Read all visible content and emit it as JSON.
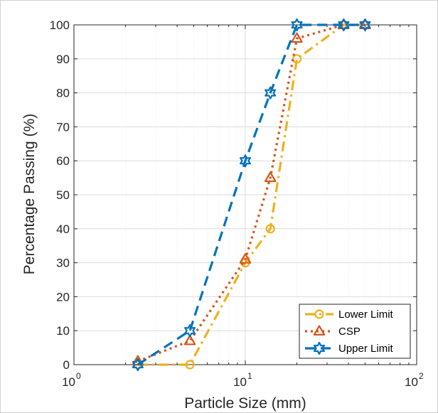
{
  "chart_data": {
    "type": "line",
    "title": "",
    "xlabel": "Particle Size (mm)",
    "ylabel": "Percentage Passing (%)",
    "xscale": "log",
    "xlim": [
      1,
      100
    ],
    "ylim": [
      0,
      100
    ],
    "x_ticks": [
      {
        "base": "10",
        "exp": "0",
        "value": 1
      },
      {
        "base": "10",
        "exp": "1",
        "value": 10
      },
      {
        "base": "10",
        "exp": "2",
        "value": 100
      }
    ],
    "y_ticks": [
      "0",
      "10",
      "20",
      "30",
      "40",
      "50",
      "60",
      "70",
      "80",
      "90",
      "100"
    ],
    "grid": true,
    "legend_position": "bottom-right",
    "series": [
      {
        "name": "Lower Limit",
        "color": "#EDB120",
        "line_style": "dash-dot",
        "marker": "circle",
        "x": [
          2.36,
          4.75,
          10,
          14,
          20,
          37.5,
          50
        ],
        "y": [
          0,
          0,
          30,
          40,
          90,
          100,
          100
        ]
      },
      {
        "name": "CSP",
        "color": "#D95319",
        "line_style": "dotted",
        "marker": "triangle",
        "x": [
          2.36,
          4.75,
          10,
          14,
          20,
          37.5,
          50
        ],
        "y": [
          1,
          7,
          31,
          55,
          96,
          100,
          100
        ]
      },
      {
        "name": "Upper Limit",
        "color": "#0072BD",
        "line_style": "dashed",
        "marker": "hexagram",
        "x": [
          2.36,
          4.75,
          10,
          14,
          20,
          37.5,
          50
        ],
        "y": [
          0,
          10,
          60,
          80,
          100,
          100,
          100
        ]
      }
    ]
  }
}
